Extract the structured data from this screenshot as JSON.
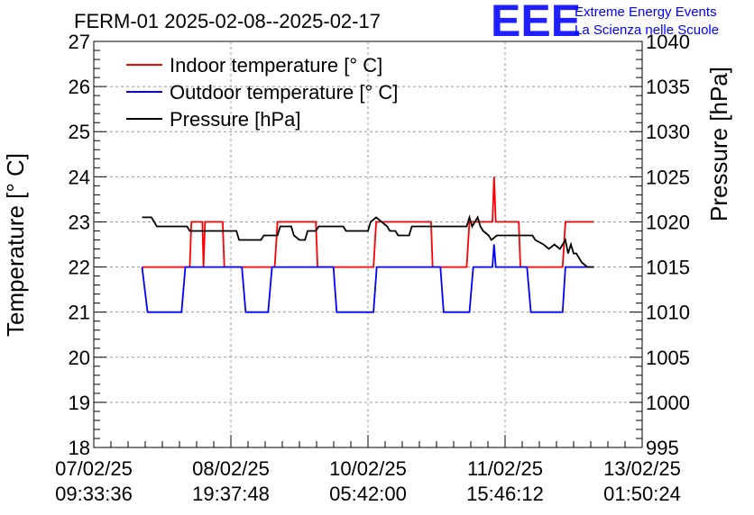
{
  "chart_data": {
    "type": "line",
    "title": "FERM-01 2025-02-08--2025-02-17",
    "ylabel_left": "Temperature [° C]",
    "ylabel_right": "Pressure [hPa]",
    "ylim_left": [
      18,
      27
    ],
    "ylim_right": [
      995,
      1040
    ],
    "left_ticks": [
      "18",
      "19",
      "20",
      "21",
      "22",
      "23",
      "24",
      "25",
      "26",
      "27"
    ],
    "right_ticks": [
      "995",
      "1000",
      "1005",
      "1010",
      "1015",
      "1020",
      "1025",
      "1030",
      "1035",
      "1040"
    ],
    "x_ticks": [
      {
        "date": "07/02/25",
        "time": "09:33:36"
      },
      {
        "date": "08/02/25",
        "time": "19:37:48"
      },
      {
        "date": "10/02/25",
        "time": "05:42:00"
      },
      {
        "date": "11/02/25",
        "time": "15:46:12"
      },
      {
        "date": "13/02/25",
        "time": "01:50:24"
      }
    ],
    "grid": true,
    "legend_position": "top-left",
    "series": [
      {
        "name": "Indoor temperature [° C]",
        "color": "#ff0000",
        "axis": "left",
        "points": [
          [
            0.088,
            22
          ],
          [
            0.175,
            22
          ],
          [
            0.178,
            23
          ],
          [
            0.198,
            23
          ],
          [
            0.2,
            22
          ],
          [
            0.203,
            23
          ],
          [
            0.235,
            23
          ],
          [
            0.238,
            22
          ],
          [
            0.33,
            22
          ],
          [
            0.335,
            23
          ],
          [
            0.405,
            23
          ],
          [
            0.408,
            22
          ],
          [
            0.51,
            22
          ],
          [
            0.515,
            23
          ],
          [
            0.615,
            23
          ],
          [
            0.618,
            22
          ],
          [
            0.68,
            22
          ],
          [
            0.685,
            23
          ],
          [
            0.727,
            23
          ],
          [
            0.73,
            24
          ],
          [
            0.733,
            23
          ],
          [
            0.775,
            23
          ],
          [
            0.778,
            22
          ],
          [
            0.855,
            22
          ],
          [
            0.86,
            23
          ],
          [
            0.912,
            23
          ]
        ]
      },
      {
        "name": "Outdoor temperature [° C]",
        "color": "#0000ff",
        "axis": "left",
        "points": [
          [
            0.088,
            22
          ],
          [
            0.098,
            21
          ],
          [
            0.16,
            21
          ],
          [
            0.167,
            22
          ],
          [
            0.27,
            22
          ],
          [
            0.277,
            21
          ],
          [
            0.318,
            21
          ],
          [
            0.325,
            22
          ],
          [
            0.437,
            22
          ],
          [
            0.443,
            21
          ],
          [
            0.51,
            21
          ],
          [
            0.516,
            22
          ],
          [
            0.632,
            22
          ],
          [
            0.638,
            21
          ],
          [
            0.685,
            21
          ],
          [
            0.692,
            22
          ],
          [
            0.727,
            22
          ],
          [
            0.73,
            22.5
          ],
          [
            0.733,
            22
          ],
          [
            0.79,
            22
          ],
          [
            0.797,
            21
          ],
          [
            0.855,
            21
          ],
          [
            0.86,
            22
          ],
          [
            0.912,
            22
          ]
        ]
      },
      {
        "name": "Pressure [hPa]",
        "color": "#000000",
        "axis": "right",
        "points": [
          [
            0.088,
            1020.5
          ],
          [
            0.105,
            1020.5
          ],
          [
            0.11,
            1020
          ],
          [
            0.115,
            1019.5
          ],
          [
            0.17,
            1019.5
          ],
          [
            0.175,
            1019
          ],
          [
            0.24,
            1019
          ],
          [
            0.26,
            1019
          ],
          [
            0.265,
            1018
          ],
          [
            0.305,
            1018
          ],
          [
            0.31,
            1018.5
          ],
          [
            0.335,
            1018.5
          ],
          [
            0.34,
            1019.5
          ],
          [
            0.36,
            1019.5
          ],
          [
            0.365,
            1018.5
          ],
          [
            0.375,
            1018
          ],
          [
            0.385,
            1018
          ],
          [
            0.39,
            1019
          ],
          [
            0.405,
            1019
          ],
          [
            0.41,
            1019.5
          ],
          [
            0.455,
            1019.5
          ],
          [
            0.46,
            1019
          ],
          [
            0.5,
            1019
          ],
          [
            0.505,
            1020
          ],
          [
            0.515,
            1020.5
          ],
          [
            0.525,
            1020
          ],
          [
            0.535,
            1019.5
          ],
          [
            0.54,
            1019
          ],
          [
            0.55,
            1019
          ],
          [
            0.555,
            1018.5
          ],
          [
            0.575,
            1018.5
          ],
          [
            0.58,
            1019.5
          ],
          [
            0.68,
            1019.5
          ],
          [
            0.685,
            1020.5
          ],
          [
            0.69,
            1019.5
          ],
          [
            0.695,
            1020
          ],
          [
            0.7,
            1020.5
          ],
          [
            0.705,
            1019.5
          ],
          [
            0.71,
            1019
          ],
          [
            0.72,
            1018.5
          ],
          [
            0.725,
            1018
          ],
          [
            0.735,
            1018.5
          ],
          [
            0.74,
            1018.5
          ],
          [
            0.8,
            1018.5
          ],
          [
            0.805,
            1018
          ],
          [
            0.82,
            1017.5
          ],
          [
            0.83,
            1017
          ],
          [
            0.84,
            1017.5
          ],
          [
            0.85,
            1017
          ],
          [
            0.86,
            1018
          ],
          [
            0.865,
            1016.5
          ],
          [
            0.87,
            1017.5
          ],
          [
            0.875,
            1016.5
          ],
          [
            0.88,
            1016.5
          ],
          [
            0.89,
            1015.5
          ],
          [
            0.9,
            1015
          ],
          [
            0.912,
            1015
          ]
        ]
      }
    ]
  },
  "logo": {
    "mark": "EEE",
    "line1": "Extreme Energy Events",
    "line2": "La Scienza nelle Scuole",
    "color": "#0000ff"
  }
}
